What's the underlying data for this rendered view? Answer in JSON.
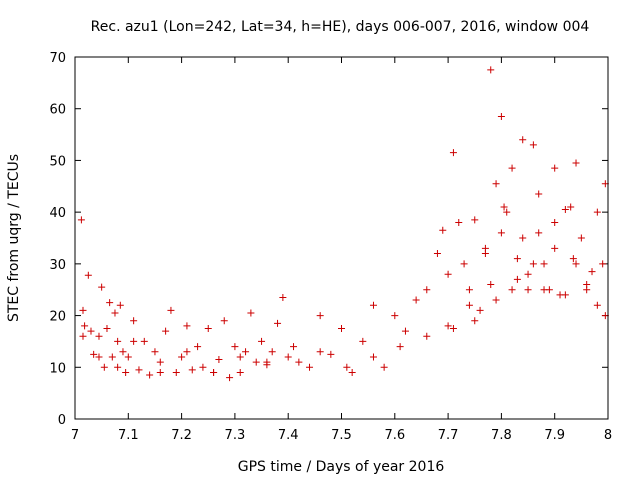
{
  "chart_data": {
    "type": "scatter",
    "title": "Rec. azu1 (Lon=242, Lat=34, h=HE), days 006-007, 2016, window 004",
    "xlabel": "GPS time / Days of year 2016",
    "ylabel": "STEC from uqrg / TECUs",
    "xlim": [
      7.0,
      8.0
    ],
    "ylim": [
      0,
      70
    ],
    "xticks": [
      "7",
      "7.1",
      "7.2",
      "7.3",
      "7.4",
      "7.5",
      "7.6",
      "7.7",
      "7.8",
      "7.9",
      "8"
    ],
    "yticks": [
      "0",
      "10",
      "20",
      "30",
      "40",
      "50",
      "60",
      "70"
    ],
    "grid": false,
    "legend": "none",
    "marker": "plus",
    "color": "#cc0000",
    "x": [
      7.012,
      7.015,
      7.018,
      7.025,
      7.03,
      7.035,
      7.045,
      7.05,
      7.055,
      7.06,
      7.065,
      7.07,
      7.075,
      7.08,
      7.085,
      7.09,
      7.095,
      7.1,
      7.11,
      7.12,
      7.13,
      7.14,
      7.15,
      7.16,
      7.17,
      7.18,
      7.19,
      7.2,
      7.21,
      7.22,
      7.23,
      7.24,
      7.25,
      7.26,
      7.27,
      7.28,
      7.29,
      7.3,
      7.31,
      7.32,
      7.33,
      7.34,
      7.35,
      7.36,
      7.37,
      7.38,
      7.39,
      7.4,
      7.42,
      7.44,
      7.46,
      7.48,
      7.5,
      7.52,
      7.54,
      7.56,
      7.58,
      7.6,
      7.62,
      7.64,
      7.66,
      7.68,
      7.69,
      7.7,
      7.71,
      7.72,
      7.73,
      7.74,
      7.75,
      7.76,
      7.77,
      7.78,
      7.79,
      7.8,
      7.81,
      7.82,
      7.83,
      7.84,
      7.85,
      7.86,
      7.87,
      7.88,
      7.89,
      7.9,
      7.91,
      7.92,
      7.93,
      7.94,
      7.95,
      7.96,
      7.97,
      7.98,
      7.99,
      7.995,
      7.015,
      7.045,
      7.08,
      7.11,
      7.16,
      7.21,
      7.26,
      7.31,
      7.36,
      7.41,
      7.46,
      7.51,
      7.56,
      7.61,
      7.66,
      7.7,
      7.74,
      7.78,
      7.8,
      7.83,
      7.86,
      7.9,
      7.94,
      7.98,
      7.71,
      7.75,
      7.79,
      7.82,
      7.85,
      7.88,
      7.92,
      7.96,
      7.77,
      7.805,
      7.84,
      7.87,
      7.9,
      7.935,
      7.995
    ],
    "y": [
      38.5,
      21,
      18,
      27.8,
      17,
      12.5,
      16,
      25.5,
      10,
      17.5,
      22.5,
      12,
      20.5,
      15,
      22,
      13,
      9,
      12,
      19,
      9.5,
      15,
      8.5,
      13,
      9,
      17,
      21,
      9,
      12,
      18,
      9.5,
      14,
      10,
      17.5,
      9,
      11.5,
      19,
      8,
      14,
      9,
      13,
      20.5,
      11,
      15,
      10.5,
      13,
      18.5,
      23.5,
      12,
      11,
      10,
      20,
      12.5,
      17.5,
      9,
      15,
      22,
      10,
      20,
      17,
      23,
      25,
      32,
      36.5,
      28,
      51.5,
      38,
      30,
      25,
      38.5,
      21,
      33,
      67.5,
      45.5,
      58.5,
      40,
      48.5,
      31,
      54,
      25,
      53,
      43.5,
      30,
      25,
      48.5,
      24,
      40.5,
      41,
      49.5,
      35,
      25,
      28.5,
      40,
      30,
      45.5,
      16,
      12,
      10,
      15,
      11,
      13,
      9,
      12,
      11,
      14,
      13,
      10,
      12,
      14,
      16,
      18,
      22,
      26,
      36,
      27,
      30,
      33,
      30,
      22,
      17.5,
      19,
      23,
      25,
      28,
      25,
      24,
      26,
      32,
      41,
      35,
      36,
      38,
      31,
      20
    ]
  }
}
